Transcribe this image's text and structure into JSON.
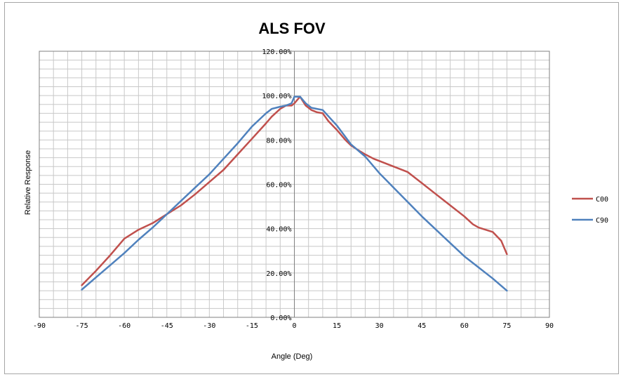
{
  "chart_data": {
    "type": "line",
    "title": "ALS FOV",
    "xlabel": "Angle (Deg)",
    "ylabel": "Relative Response",
    "xlim": [
      -90,
      90
    ],
    "ylim": [
      0,
      1.2
    ],
    "x_ticks": [
      "-90",
      "-75",
      "-60",
      "-45",
      "-30",
      "-15",
      "0",
      "15",
      "30",
      "45",
      "60",
      "75",
      "90"
    ],
    "y_ticks": [
      "0.00%",
      "20.00%",
      "40.00%",
      "60.00%",
      "80.00%",
      "100.00%",
      "120.00%"
    ],
    "grid": true,
    "legend_position": "right",
    "series": [
      {
        "name": "C00",
        "color": "#c0504d",
        "x": [
          -75,
          -70,
          -65,
          -60,
          -55,
          -50,
          -45,
          -40,
          -35,
          -30,
          -25,
          -20,
          -15,
          -10,
          -8,
          -5,
          -3,
          -1,
          0,
          2,
          4,
          6,
          8,
          10,
          12,
          15,
          18,
          20,
          23,
          25,
          28,
          30,
          35,
          40,
          45,
          50,
          55,
          60,
          63,
          65,
          70,
          73,
          75
        ],
        "y": [
          0.145,
          0.21,
          0.28,
          0.355,
          0.395,
          0.425,
          0.465,
          0.505,
          0.555,
          0.61,
          0.665,
          0.735,
          0.805,
          0.875,
          0.905,
          0.94,
          0.955,
          0.955,
          0.965,
          0.995,
          0.955,
          0.935,
          0.925,
          0.92,
          0.885,
          0.845,
          0.8,
          0.775,
          0.75,
          0.735,
          0.715,
          0.705,
          0.68,
          0.655,
          0.605,
          0.555,
          0.505,
          0.455,
          0.42,
          0.405,
          0.385,
          0.345,
          0.285
        ]
      },
      {
        "name": "C90",
        "color": "#4f81bd",
        "x": [
          -75,
          -70,
          -65,
          -60,
          -55,
          -50,
          -45,
          -40,
          -35,
          -30,
          -25,
          -20,
          -15,
          -10,
          -8,
          -5,
          -3,
          -1,
          0,
          2,
          4,
          6,
          8,
          10,
          15,
          20,
          25,
          30,
          35,
          40,
          45,
          50,
          55,
          60,
          65,
          70,
          75
        ],
        "y": [
          0.125,
          0.18,
          0.235,
          0.29,
          0.35,
          0.405,
          0.465,
          0.525,
          0.585,
          0.645,
          0.715,
          0.785,
          0.86,
          0.92,
          0.94,
          0.95,
          0.955,
          0.965,
          0.995,
          0.995,
          0.965,
          0.945,
          0.94,
          0.935,
          0.865,
          0.78,
          0.725,
          0.65,
          0.585,
          0.52,
          0.455,
          0.395,
          0.335,
          0.275,
          0.225,
          0.175,
          0.12
        ]
      }
    ]
  }
}
